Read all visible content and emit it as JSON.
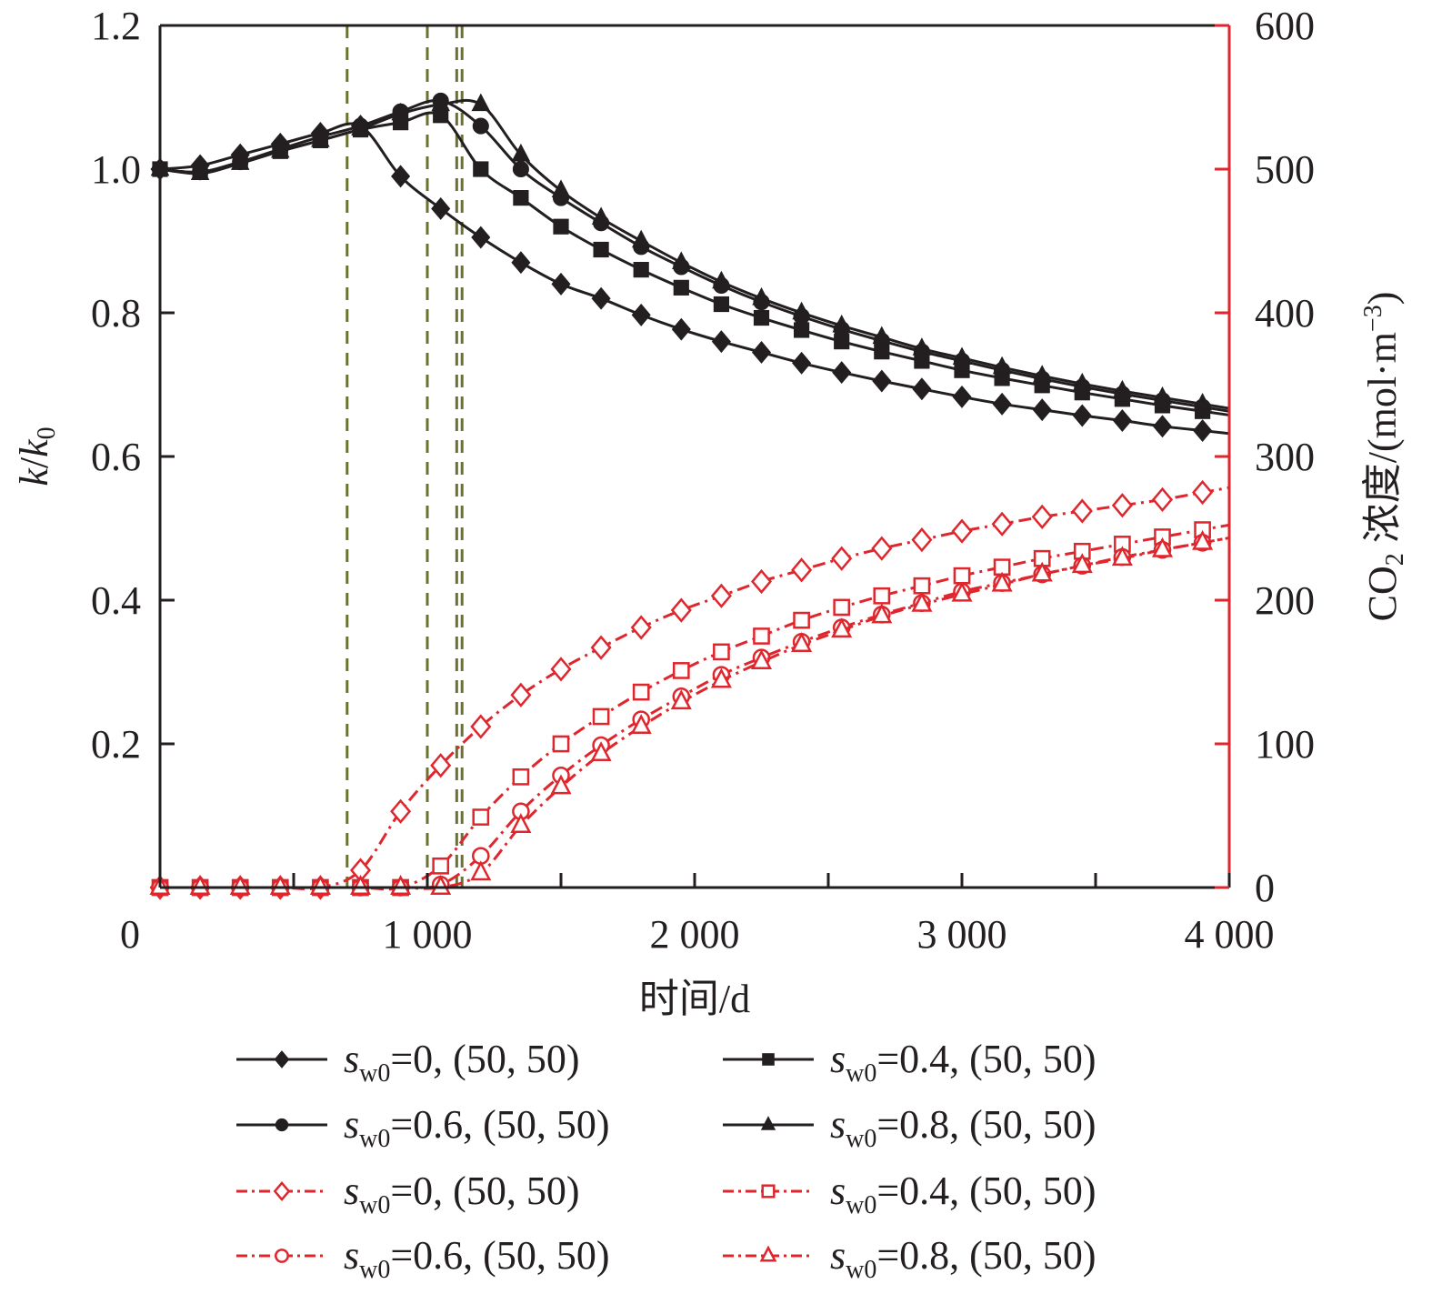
{
  "chart_data": {
    "type": "line",
    "title": "",
    "xlabel": "时间/d",
    "ylabel_left": "k/k0",
    "ylabel_left_parts": {
      "k": "k",
      "slash": "/",
      "k0": "k",
      "sub": "0"
    },
    "ylabel_right": "CO2 浓度/(mol·m⁻³)",
    "ylabel_right_parts": {
      "co": "CO",
      "sub": "2",
      "rest": " 浓度/(mol·m",
      "sup": "−3",
      "close": ")"
    },
    "xlim": [
      0,
      4000
    ],
    "ylim_left": [
      0,
      1.2
    ],
    "ylim_right": [
      0,
      600
    ],
    "x_ticks": [
      0,
      500,
      1000,
      1500,
      2000,
      2500,
      3000,
      3500,
      4000
    ],
    "x_tick_labels": [
      {
        "value": 0,
        "label": "0"
      },
      {
        "value": 1000,
        "label": "1 000"
      },
      {
        "value": 2000,
        "label": "2 000"
      },
      {
        "value": 3000,
        "label": "3 000"
      },
      {
        "value": 4000,
        "label": "4 000"
      }
    ],
    "y_left_ticks": [
      {
        "value": 0.2,
        "label": "0.2"
      },
      {
        "value": 0.4,
        "label": "0.4"
      },
      {
        "value": 0.6,
        "label": "0.6"
      },
      {
        "value": 0.8,
        "label": "0.8"
      },
      {
        "value": 1.0,
        "label": "1.0"
      },
      {
        "value": 1.2,
        "label": "1.2"
      }
    ],
    "y_right_ticks": [
      {
        "value": 0,
        "label": "0"
      },
      {
        "value": 100,
        "label": "100"
      },
      {
        "value": 200,
        "label": "200"
      },
      {
        "value": 300,
        "label": "300"
      },
      {
        "value": 400,
        "label": "400"
      },
      {
        "value": 500,
        "label": "500"
      },
      {
        "value": 600,
        "label": "600"
      }
    ],
    "vertical_reference_lines": [
      700,
      1000,
      1110,
      1130
    ],
    "colors": {
      "black": "#231f20",
      "red": "#e0262d",
      "olive": "#6b7230",
      "axis_right": "#e0262d"
    },
    "x": [
      0,
      150,
      300,
      450,
      600,
      750,
      900,
      1050,
      1200,
      1350,
      1500,
      1650,
      1800,
      1950,
      2100,
      2250,
      2400,
      2550,
      2700,
      2850,
      3000,
      3150,
      3300,
      3450,
      3600,
      3750,
      3900
    ],
    "series": [
      {
        "name": "sw0=0, (50, 50)",
        "axis": "left",
        "color": "black",
        "marker": "diamond-filled",
        "style": "solid",
        "values": [
          1.0,
          1.005,
          1.02,
          1.035,
          1.05,
          1.06,
          0.99,
          0.945,
          0.905,
          0.87,
          0.84,
          0.82,
          0.797,
          0.777,
          0.76,
          0.745,
          0.73,
          0.717,
          0.705,
          0.694,
          0.683,
          0.673,
          0.665,
          0.657,
          0.65,
          0.642,
          0.636
        ]
      },
      {
        "name": "sw0=0.4, (50, 50)",
        "axis": "left",
        "color": "black",
        "marker": "square-filled",
        "style": "solid",
        "values": [
          1.0,
          0.996,
          1.01,
          1.025,
          1.04,
          1.055,
          1.065,
          1.075,
          1.0,
          0.96,
          0.92,
          0.888,
          0.86,
          0.835,
          0.812,
          0.793,
          0.776,
          0.76,
          0.746,
          0.733,
          0.72,
          0.709,
          0.699,
          0.689,
          0.68,
          0.671,
          0.663
        ]
      },
      {
        "name": "sw0=0.6, (50, 50)",
        "axis": "left",
        "color": "black",
        "marker": "circle-filled",
        "style": "solid",
        "values": [
          1.0,
          0.996,
          1.01,
          1.028,
          1.045,
          1.06,
          1.08,
          1.095,
          1.06,
          1.0,
          0.96,
          0.925,
          0.892,
          0.864,
          0.838,
          0.815,
          0.795,
          0.777,
          0.761,
          0.746,
          0.733,
          0.72,
          0.708,
          0.697,
          0.687,
          0.678,
          0.669
        ]
      },
      {
        "name": "sw0=0.8, (50, 50)",
        "axis": "left",
        "color": "black",
        "marker": "triangle-filled",
        "style": "solid",
        "values": [
          1.0,
          0.994,
          1.008,
          1.025,
          1.04,
          1.056,
          1.077,
          1.09,
          1.09,
          1.02,
          0.97,
          0.932,
          0.9,
          0.87,
          0.843,
          0.82,
          0.8,
          0.782,
          0.766,
          0.75,
          0.737,
          0.724,
          0.712,
          0.701,
          0.691,
          0.682,
          0.673
        ]
      },
      {
        "name": "sw0=0, (50, 50)",
        "axis": "right",
        "color": "red",
        "marker": "diamond-open",
        "style": "dashdot",
        "values": [
          0,
          0,
          0,
          0,
          0,
          12,
          53,
          85,
          112,
          134,
          152,
          167,
          181,
          193,
          203,
          213,
          221,
          229,
          236,
          242,
          248,
          253,
          258,
          262,
          266,
          270,
          275
        ]
      },
      {
        "name": "sw0=0.4, (50, 50)",
        "axis": "right",
        "color": "red",
        "marker": "square-open",
        "style": "dashdot",
        "values": [
          0,
          0,
          0,
          0,
          0,
          0,
          0,
          15,
          49,
          77,
          100,
          119,
          136,
          151,
          164,
          175,
          186,
          195,
          203,
          210,
          217,
          223,
          229,
          234,
          239,
          244,
          249
        ]
      },
      {
        "name": "sw0=0.6, (50, 50)",
        "axis": "right",
        "color": "red",
        "marker": "circle-open",
        "style": "dashdot",
        "values": [
          0,
          0,
          0,
          0,
          0,
          0,
          0,
          2,
          22,
          53,
          78,
          99,
          117,
          133,
          148,
          160,
          171,
          181,
          190,
          198,
          206,
          212,
          218,
          224,
          230,
          235,
          240
        ]
      },
      {
        "name": "sw0=0.8, (50, 50)",
        "axis": "right",
        "color": "red",
        "marker": "triangle-open",
        "style": "dashdot",
        "values": [
          0,
          0,
          0,
          0,
          0,
          0,
          0,
          0,
          10,
          43,
          70,
          93,
          112,
          129,
          144,
          157,
          169,
          179,
          189,
          197,
          204,
          211,
          218,
          224,
          229,
          235,
          240
        ]
      }
    ],
    "legend": {
      "placement": "bottom",
      "columns": 2,
      "entries": [
        {
          "series_index": 0,
          "prefix": "s",
          "sub": "w0",
          "label": "=0, (50, 50)"
        },
        {
          "series_index": 1,
          "prefix": "s",
          "sub": "w0",
          "label": "=0.4, (50, 50)"
        },
        {
          "series_index": 2,
          "prefix": "s",
          "sub": "w0",
          "label": "=0.6, (50, 50)"
        },
        {
          "series_index": 3,
          "prefix": "s",
          "sub": "w0",
          "label": "=0.8, (50, 50)"
        },
        {
          "series_index": 4,
          "prefix": "s",
          "sub": "w0",
          "label": "=0, (50, 50)"
        },
        {
          "series_index": 5,
          "prefix": "s",
          "sub": "w0",
          "label": "=0.4, (50, 50)"
        },
        {
          "series_index": 6,
          "prefix": "s",
          "sub": "w0",
          "label": "=0.6, (50, 50)"
        },
        {
          "series_index": 7,
          "prefix": "s",
          "sub": "w0",
          "label": "=0.8, (50, 50)"
        }
      ]
    },
    "grid": false
  }
}
